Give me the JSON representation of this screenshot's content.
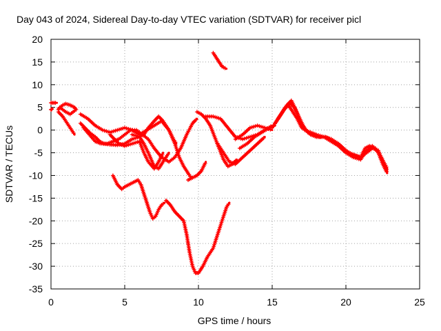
{
  "chart_data": {
    "type": "scatter",
    "title": "Day 043 of 2024, Sidereal Day-to-day VTEC variation (SDTVAR) for receiver picl",
    "xlabel": "GPS time / hours",
    "ylabel": "SDTVAR / TECUs",
    "xlim": [
      0,
      25
    ],
    "ylim": [
      -35,
      20
    ],
    "xticks": [
      "0",
      "5",
      "10",
      "15",
      "20",
      "25"
    ],
    "yticks": [
      "20",
      "15",
      "10",
      "5",
      "0",
      "-5",
      "-10",
      "-15",
      "-20",
      "-25",
      "-30",
      "-35"
    ],
    "grid": true,
    "marker": "plus",
    "color": "#ff0000",
    "series": [
      {
        "x": [
          0,
          0.2,
          0.4
        ],
        "y": [
          6,
          6,
          6
        ]
      },
      {
        "x": [
          0,
          0.05,
          0.1
        ],
        "y": [
          4.5,
          4.6,
          4.7
        ]
      },
      {
        "x": [
          0.5,
          0.6,
          0.8,
          1.0,
          1.3,
          1.6,
          1.7,
          1.5,
          1.3,
          1.0,
          0.8,
          0.6,
          0.5
        ],
        "y": [
          4.5,
          5,
          5.5,
          5.8,
          5.5,
          5,
          4.5,
          4,
          3.5,
          4,
          4.5,
          5,
          4.5
        ]
      },
      {
        "x": [
          0.5,
          0.8,
          1.0,
          1.2,
          1.4,
          1.6
        ],
        "y": [
          4,
          3,
          2,
          1,
          0,
          -1
        ]
      },
      {
        "x": [
          2.0,
          2.5,
          3.0,
          3.5,
          4.0,
          4.5,
          5.0,
          5.5,
          6.0,
          6.5,
          7.0,
          7.5,
          8.0,
          8.3,
          8.5
        ],
        "y": [
          3.5,
          2.5,
          1,
          0,
          -0.5,
          0,
          0.5,
          0,
          -1,
          0,
          1,
          2,
          0,
          -2,
          -3
        ]
      },
      {
        "x": [
          2.0,
          2.3,
          2.6,
          3.0,
          3.3,
          3.6,
          4.0,
          4.5,
          5.0,
          5.5,
          6.0,
          6.3,
          6.6,
          7.0,
          7.3,
          7.6,
          8.0
        ],
        "y": [
          1.5,
          0.5,
          -0.5,
          -1.5,
          -2.5,
          -3,
          -3.2,
          -3.3,
          -3,
          -2,
          -1.5,
          -3,
          -5,
          -8,
          -8.5,
          -7,
          -5
        ]
      },
      {
        "x": [
          2.2,
          2.6,
          3.0,
          3.4,
          3.8,
          4.2,
          4.6,
          5.0,
          5.4,
          5.8,
          6.2,
          6.6,
          7.0,
          7.5,
          8.0,
          8.4,
          8.8,
          9.2,
          9.6,
          9.9
        ],
        "y": [
          0.5,
          -1,
          -2.5,
          -3,
          -3,
          -2.5,
          -2,
          -1,
          0,
          0,
          -1,
          -2,
          -4,
          -6,
          -7,
          -6,
          -4,
          -1,
          1.5,
          2.5
        ]
      },
      {
        "x": [
          4.0,
          4.3,
          4.6,
          5.0,
          5.5,
          6.0,
          6.3,
          6.6,
          7.0,
          7.3,
          7.6
        ],
        "y": [
          -1,
          -2,
          -3,
          -3.5,
          -3,
          -2.5,
          -5,
          -7,
          -8.5,
          -7,
          -5
        ]
      },
      {
        "x": [
          5.5,
          6.0,
          6.3,
          6.6,
          7.0,
          7.3,
          7.6,
          8.0,
          8.4,
          8.7,
          9.0,
          9.3,
          9.5
        ],
        "y": [
          -1,
          -1.5,
          -1,
          0.5,
          2,
          3,
          2,
          0,
          -3,
          -6,
          -8,
          -9.5,
          -10.5
        ]
      },
      {
        "x": [
          4.2,
          4.5,
          4.8,
          5.0,
          5.3,
          5.6,
          5.9,
          6.1,
          6.3,
          6.5,
          6.7,
          6.9,
          7.1,
          7.3,
          7.5,
          7.7
        ],
        "y": [
          -10,
          -12,
          -13,
          -12.5,
          -12,
          -11.5,
          -11,
          -12,
          -14,
          -16,
          -18,
          -19.5,
          -19,
          -17.5,
          -16.5,
          -16
        ]
      },
      {
        "x": [
          7.8,
          8.1,
          8.4,
          8.7,
          9.0,
          9.2,
          9.4,
          9.6,
          9.8,
          10.0,
          10.3,
          10.6,
          11.0,
          11.3,
          11.6,
          11.9,
          12.1
        ],
        "y": [
          -15.5,
          -16.5,
          -18,
          -19,
          -20,
          -23,
          -27,
          -30,
          -31.5,
          -31.5,
          -30,
          -28,
          -26,
          -23,
          -20,
          -17,
          -16
        ]
      },
      {
        "x": [
          9.3,
          9.6,
          9.9,
          10.2,
          10.5
        ],
        "y": [
          -11,
          -10.5,
          -10,
          -9,
          -7
        ]
      },
      {
        "x": [
          9.9,
          10.2,
          10.5,
          10.8,
          11.1,
          11.4,
          11.7,
          12.0,
          12.3,
          12.6
        ],
        "y": [
          4,
          3.5,
          2.5,
          1,
          -1.5,
          -4,
          -6.5,
          -8,
          -7.5,
          -6.5
        ]
      },
      {
        "x": [
          10.5,
          11.0,
          11.5,
          12.0,
          12.5,
          13.0,
          13.5,
          14.0,
          14.5,
          15.0
        ],
        "y": [
          3,
          3,
          2.5,
          0.5,
          -1.5,
          -2,
          -1.5,
          -1,
          0,
          1
        ]
      },
      {
        "x": [
          11.3,
          11.7,
          12.1,
          12.5,
          13.0,
          13.5,
          14.0,
          14.5
        ],
        "y": [
          -3,
          -5,
          -7,
          -7.5,
          -6,
          -4.5,
          -3,
          -1.5
        ]
      },
      {
        "x": [
          11.0,
          11.3,
          11.6,
          11.9
        ],
        "y": [
          17,
          15.5,
          14,
          13.5
        ]
      },
      {
        "x": [
          12.5,
          13.0,
          13.5,
          14.0,
          14.5,
          15.0
        ],
        "y": [
          -2,
          -1,
          0.5,
          1,
          0.5,
          0
        ]
      },
      {
        "x": [
          12.8,
          13.3,
          13.8,
          14.3,
          14.8,
          15.2
        ],
        "y": [
          -4,
          -3,
          -1.5,
          -0.5,
          0.5,
          1
        ]
      },
      {
        "x": [
          15.0,
          15.3,
          15.6,
          15.9,
          16.2,
          16.5,
          16.8,
          17.1,
          17.4,
          17.7,
          18.0,
          18.3,
          18.6,
          19.0,
          19.4,
          19.8,
          20.2,
          20.6,
          21.0,
          21.4,
          21.8,
          22.2,
          22.5,
          22.8
        ],
        "y": [
          0.5,
          2,
          3.5,
          5,
          6,
          5,
          3,
          1,
          -0.5,
          -1,
          -1.5,
          -1.5,
          -1.5,
          -2,
          -3,
          -4,
          -5,
          -5.5,
          -6,
          -5,
          -4,
          -4.5,
          -7,
          -9
        ]
      },
      {
        "x": [
          15.2,
          15.5,
          15.8,
          16.1,
          16.4,
          16.7,
          17.0,
          17.3,
          17.6,
          18.0,
          18.5,
          19.0,
          19.5,
          20.0,
          20.5,
          21.0,
          21.4,
          21.8,
          22.2,
          22.5,
          22.8
        ],
        "y": [
          1.5,
          3,
          4.5,
          5.5,
          4,
          2.5,
          0.5,
          0,
          -1,
          -1.5,
          -1.5,
          -2.5,
          -3.5,
          -5,
          -6,
          -6.5,
          -4.5,
          -3.5,
          -5,
          -7.5,
          -9.5
        ]
      },
      {
        "x": [
          15.4,
          15.7,
          16.0,
          16.3,
          16.6,
          16.9,
          17.2,
          17.6,
          18.0,
          18.5,
          19.0,
          19.5,
          20.0,
          20.5,
          21.0,
          21.3,
          21.6,
          22.0,
          22.4,
          22.8
        ],
        "y": [
          2.5,
          4,
          5.5,
          6.5,
          4.5,
          2,
          0,
          -0.5,
          -1,
          -1.5,
          -2,
          -3,
          -4.5,
          -5.5,
          -6,
          -4,
          -3.5,
          -4,
          -6,
          -8.5
        ]
      }
    ]
  }
}
